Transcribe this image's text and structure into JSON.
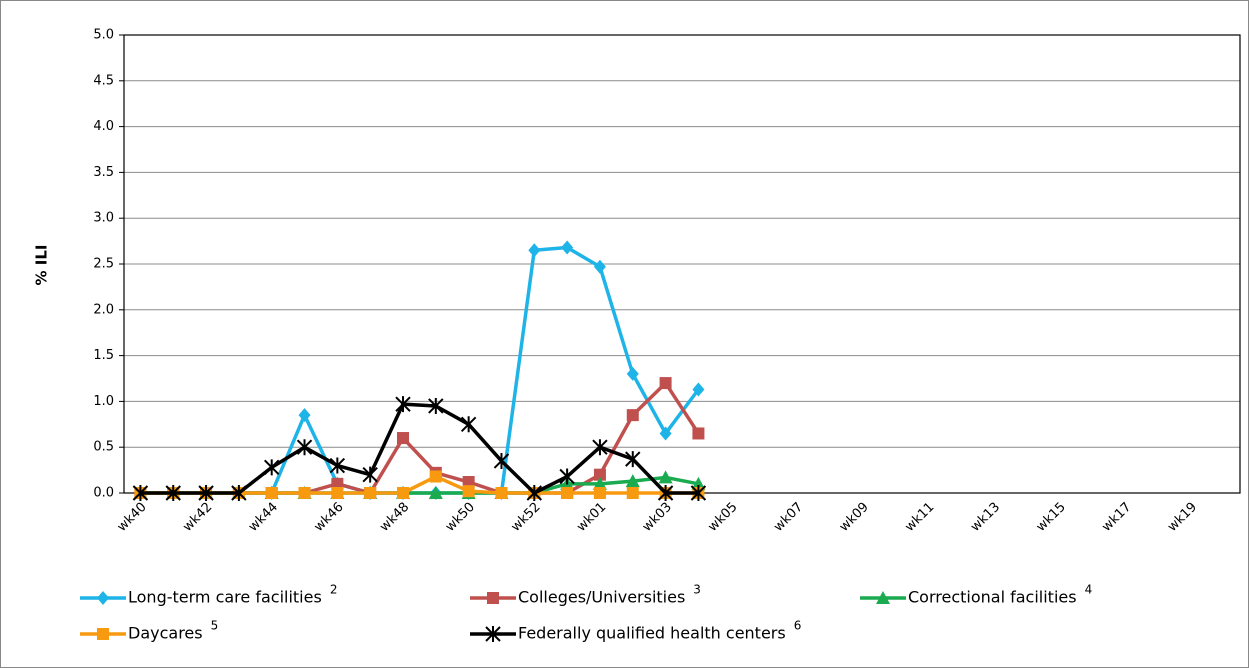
{
  "chart_data": {
    "type": "line",
    "y_label": "% ILI",
    "categories": [
      "wk40",
      null,
      "wk42",
      null,
      "wk44",
      null,
      "wk46",
      null,
      "wk48",
      null,
      "wk50",
      null,
      "wk52",
      null,
      "wk01",
      null,
      "wk03",
      null,
      "wk05",
      null,
      "wk07",
      null,
      "wk09",
      null,
      "wk11",
      null,
      "wk13",
      null,
      "wk15",
      null,
      "wk17",
      null,
      "wk19",
      null
    ],
    "ylim": [
      0,
      5
    ],
    "yticks": [
      {
        "value": 0,
        "label": "0.0"
      },
      {
        "value": 0.5,
        "label": "0.5"
      },
      {
        "value": 1,
        "label": "1.0"
      },
      {
        "value": 1.5,
        "label": "1.5"
      },
      {
        "value": 2,
        "label": "2.0"
      },
      {
        "value": 2.5,
        "label": "2.5"
      },
      {
        "value": 3,
        "label": "3.0"
      },
      {
        "value": 3.5,
        "label": "3.5"
      },
      {
        "value": 4,
        "label": "4.0"
      },
      {
        "value": 4.5,
        "label": "4.5"
      },
      {
        "value": 5,
        "label": "5.0"
      }
    ],
    "grid": true,
    "legend": "bottom",
    "series": [
      {
        "name": "Long-term care facilities",
        "footnote": "2",
        "color": "#1fb4e8",
        "marker": "diamond",
        "values": [
          0,
          0,
          0,
          0,
          0,
          0.85,
          0.1,
          0,
          0,
          0,
          0,
          0,
          2.65,
          2.68,
          2.47,
          1.3,
          0.65,
          1.13,
          null,
          null,
          null,
          null,
          null,
          null,
          null,
          null,
          null,
          null,
          null,
          null,
          null,
          null,
          null,
          null
        ]
      },
      {
        "name": "Colleges/Universities",
        "footnote": "3",
        "color": "#c0504d",
        "marker": "square",
        "values": [
          0,
          0,
          0,
          0,
          0,
          0,
          0.1,
          0,
          0.6,
          0.22,
          0.12,
          0,
          0,
          0,
          0.2,
          0.85,
          1.2,
          0.65,
          null,
          null,
          null,
          null,
          null,
          null,
          null,
          null,
          null,
          null,
          null,
          null,
          null,
          null,
          null,
          null
        ]
      },
      {
        "name": "Correctional facilities",
        "footnote": "4",
        "color": "#1aaa4f",
        "marker": "triangle",
        "values": [
          0,
          0,
          0,
          0,
          0,
          0,
          0,
          0,
          0,
          0,
          0,
          0,
          0,
          0.1,
          0.1,
          0.13,
          0.17,
          0.1,
          null,
          null,
          null,
          null,
          null,
          null,
          null,
          null,
          null,
          null,
          null,
          null,
          null,
          null,
          null,
          null
        ]
      },
      {
        "name": "Daycares",
        "footnote": "5",
        "color": "#f79a10",
        "marker": "square",
        "values": [
          0,
          0,
          0,
          0,
          0,
          0,
          0,
          0,
          0,
          0.18,
          0.02,
          0,
          0,
          0,
          0,
          0,
          0,
          0,
          null,
          null,
          null,
          null,
          null,
          null,
          null,
          null,
          null,
          null,
          null,
          null,
          null,
          null,
          null,
          null
        ]
      },
      {
        "name": "Federally qualified health centers",
        "footnote": "6",
        "color": "#000000",
        "marker": "star",
        "values": [
          0,
          0,
          0,
          0,
          0.28,
          0.5,
          0.3,
          0.2,
          0.97,
          0.95,
          0.75,
          0.35,
          0,
          0.18,
          0.5,
          0.37,
          0,
          0,
          null,
          null,
          null,
          null,
          null,
          null,
          null,
          null,
          null,
          null,
          null,
          null,
          null,
          null,
          null,
          null
        ]
      }
    ]
  }
}
